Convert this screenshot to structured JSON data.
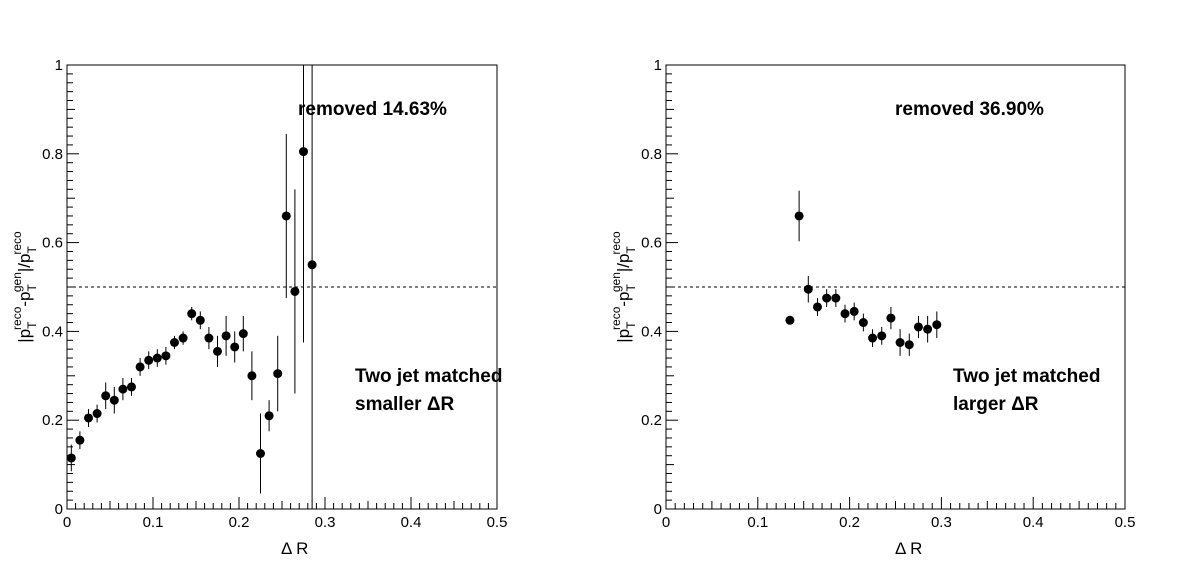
{
  "chart_data": [
    {
      "type": "scatter",
      "title": "",
      "xlabel": "Δ R",
      "ylabel": {
        "p": "|p",
        "T": "T",
        "reco": "reco",
        "minus": "-p",
        "gen": "gen",
        "slash": "|/p"
      },
      "xlim": [
        0,
        0.5
      ],
      "ylim": [
        0,
        1
      ],
      "x_ticks": [
        {
          "v": 0,
          "label": "0"
        },
        {
          "v": 0.1,
          "label": "0.1"
        },
        {
          "v": 0.2,
          "label": "0.2"
        },
        {
          "v": 0.3,
          "label": "0.3"
        },
        {
          "v": 0.4,
          "label": "0.4"
        },
        {
          "v": 0.5,
          "label": "0.5"
        }
      ],
      "y_ticks": [
        {
          "v": 0,
          "label": "0"
        },
        {
          "v": 0.2,
          "label": "0.2"
        },
        {
          "v": 0.4,
          "label": "0.4"
        },
        {
          "v": 0.6,
          "label": "0.6"
        },
        {
          "v": 0.8,
          "label": "0.8"
        },
        {
          "v": 1,
          "label": "1"
        }
      ],
      "reference_line_y": 0.5,
      "annotations": {
        "removed": "removed 14.63%",
        "line1": "Two jet matched",
        "line2": "smaller ΔR"
      },
      "x": [
        0.005,
        0.015,
        0.025,
        0.035,
        0.045,
        0.055,
        0.065,
        0.075,
        0.085,
        0.095,
        0.105,
        0.115,
        0.125,
        0.135,
        0.145,
        0.155,
        0.165,
        0.175,
        0.185,
        0.195,
        0.205,
        0.215,
        0.225,
        0.235,
        0.245,
        0.255,
        0.265,
        0.275,
        0.285
      ],
      "y": [
        0.115,
        0.155,
        0.205,
        0.215,
        0.255,
        0.245,
        0.27,
        0.275,
        0.32,
        0.335,
        0.34,
        0.345,
        0.375,
        0.385,
        0.44,
        0.425,
        0.385,
        0.355,
        0.39,
        0.365,
        0.395,
        0.3,
        0.125,
        0.21,
        0.305,
        0.66,
        0.49,
        0.805,
        0.55
      ],
      "y_err": [
        0.03,
        0.02,
        0.02,
        0.02,
        0.03,
        0.03,
        0.025,
        0.02,
        0.02,
        0.02,
        0.02,
        0.02,
        0.015,
        0.015,
        0.015,
        0.02,
        0.025,
        0.035,
        0.045,
        0.035,
        0.04,
        0.055,
        0.09,
        0.035,
        0.085,
        0.185,
        0.23,
        0.43,
        0.55
      ]
    },
    {
      "type": "scatter",
      "title": "",
      "xlabel": "Δ R",
      "ylabel": {
        "p": "|p",
        "T": "T",
        "reco": "reco",
        "minus": "-p",
        "gen": "gen",
        "slash": "|/p"
      },
      "xlim": [
        0,
        0.5
      ],
      "ylim": [
        0,
        1
      ],
      "x_ticks": [
        {
          "v": 0,
          "label": "0"
        },
        {
          "v": 0.1,
          "label": "0.1"
        },
        {
          "v": 0.2,
          "label": "0.2"
        },
        {
          "v": 0.3,
          "label": "0.3"
        },
        {
          "v": 0.4,
          "label": "0.4"
        },
        {
          "v": 0.5,
          "label": "0.5"
        }
      ],
      "y_ticks": [
        {
          "v": 0,
          "label": "0"
        },
        {
          "v": 0.2,
          "label": "0.2"
        },
        {
          "v": 0.4,
          "label": "0.4"
        },
        {
          "v": 0.6,
          "label": "0.6"
        },
        {
          "v": 0.8,
          "label": "0.8"
        },
        {
          "v": 1,
          "label": "1"
        }
      ],
      "reference_line_y": 0.5,
      "annotations": {
        "removed": "removed 36.90%",
        "line1": "Two jet matched",
        "line2": "larger ΔR"
      },
      "x": [
        0.135,
        0.145,
        0.155,
        0.165,
        0.175,
        0.185,
        0.195,
        0.205,
        0.215,
        0.225,
        0.235,
        0.245,
        0.255,
        0.265,
        0.275,
        0.285,
        0.295
      ],
      "y": [
        0.425,
        0.66,
        0.495,
        0.455,
        0.475,
        0.475,
        0.44,
        0.445,
        0.42,
        0.385,
        0.39,
        0.43,
        0.375,
        0.37,
        0.41,
        0.405,
        0.415
      ],
      "y_err": [
        0.005,
        0.057,
        0.03,
        0.02,
        0.02,
        0.02,
        0.02,
        0.02,
        0.02,
        0.02,
        0.02,
        0.025,
        0.03,
        0.025,
        0.025,
        0.03,
        0.03
      ]
    }
  ]
}
